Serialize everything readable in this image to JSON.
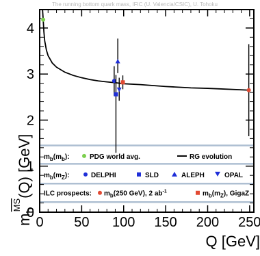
{
  "chart_data": {
    "type": "scatter",
    "title": "The running bottom quark mass, IFIC (U. Valencia/CSIC), U. Tohoku",
    "xlabel": "Q [GeV]",
    "ylabel_main": "m",
    "ylabel_sub": "b",
    "ylabel_sup": "MS",
    "ylabel_tail": "(Q) [GeV]",
    "xlim": [
      0,
      255
    ],
    "ylim": [
      0,
      4.4
    ],
    "x_ticks": [
      0,
      50,
      100,
      150,
      200,
      250
    ],
    "x_tick_labels": [
      "0",
      "50",
      "100",
      "150",
      "200",
      "250"
    ],
    "y_ticks": [
      0,
      1,
      2,
      3,
      4
    ],
    "y_tick_labels": [
      "0",
      "1",
      "2",
      "3",
      "4"
    ],
    "rg_evolution": {
      "name": "RG evolution",
      "x": [
        3.4,
        4.18,
        5,
        6,
        8,
        10,
        15,
        20,
        30,
        40,
        50,
        60,
        70,
        80,
        91.19,
        100,
        120,
        150,
        180,
        200,
        250
      ],
      "y": [
        4.45,
        4.18,
        3.92,
        3.72,
        3.52,
        3.4,
        3.24,
        3.15,
        3.04,
        2.97,
        2.92,
        2.88,
        2.85,
        2.83,
        2.81,
        2.79,
        2.77,
        2.73,
        2.7,
        2.69,
        2.65
      ]
    },
    "points": [
      {
        "name": "PDG world avg.",
        "x": 4.18,
        "y": 4.18,
        "yerr_lo": 0.03,
        "yerr_hi": 0.03,
        "marker": "circle",
        "color": "#7ccf4e"
      },
      {
        "name": "DELPHI",
        "x": 88.7,
        "y": 2.85,
        "yerr_lo": 0.32,
        "yerr_hi": 0.32,
        "marker": "circle",
        "color": "#1f2fd8"
      },
      {
        "name": "SLD",
        "x": 90.8,
        "y": 2.56,
        "yerr_lo": 1.27,
        "yerr_hi": 0.42,
        "marker": "square",
        "color": "#1f2fd8"
      },
      {
        "name": "ALEPH",
        "x": 93.0,
        "y": 3.27,
        "yerr_lo": 0.25,
        "yerr_hi": 0.5,
        "marker": "triangle-up",
        "color": "#1f2fd8"
      },
      {
        "name": "OPAL",
        "x": 94.7,
        "y": 2.67,
        "yerr_lo": 0.25,
        "yerr_hi": 0.25,
        "marker": "triangle-down",
        "color": "#1f2fd8"
      },
      {
        "name": "m_b(m_Z), GigaZ",
        "x": 99.0,
        "y": 2.82,
        "yerr_lo": 0.15,
        "yerr_hi": 0.15,
        "marker": "square",
        "color": "#e24a33"
      },
      {
        "name": "m_b(250 GeV), 2 ab-1",
        "x": 249,
        "y": 2.65,
        "yerr_lo": 1.0,
        "yerr_hi": 1.0,
        "marker": "circle",
        "color": "#e24a33"
      }
    ],
    "legend": {
      "row1": {
        "prefix_main": "m",
        "prefix_sub1": "b",
        "prefix_paren_open": "(m",
        "prefix_sub2": "b",
        "prefix_paren_close": "):",
        "pdg_label": "PDG world avg.",
        "rg_label": "RG evolution"
      },
      "row2": {
        "prefix_main": "m",
        "prefix_sub1": "b",
        "prefix_paren_open": "(m",
        "prefix_sub2": "Z",
        "prefix_paren_close": "):",
        "delphi": "DELPHI",
        "sld": "SLD",
        "aleph": "ALEPH",
        "opal": "OPAL"
      },
      "row3": {
        "prefix": "ILC prospects:",
        "item1_main": "m",
        "item1_sub": "b",
        "item1_rest": "(250 GeV), 2 ab",
        "item1_sup": "-1",
        "item2_main": "m",
        "item2_sub": "b",
        "item2_open": "(m",
        "item2_sub2": "Z",
        "item2_rest": "), GigaZ"
      }
    }
  }
}
